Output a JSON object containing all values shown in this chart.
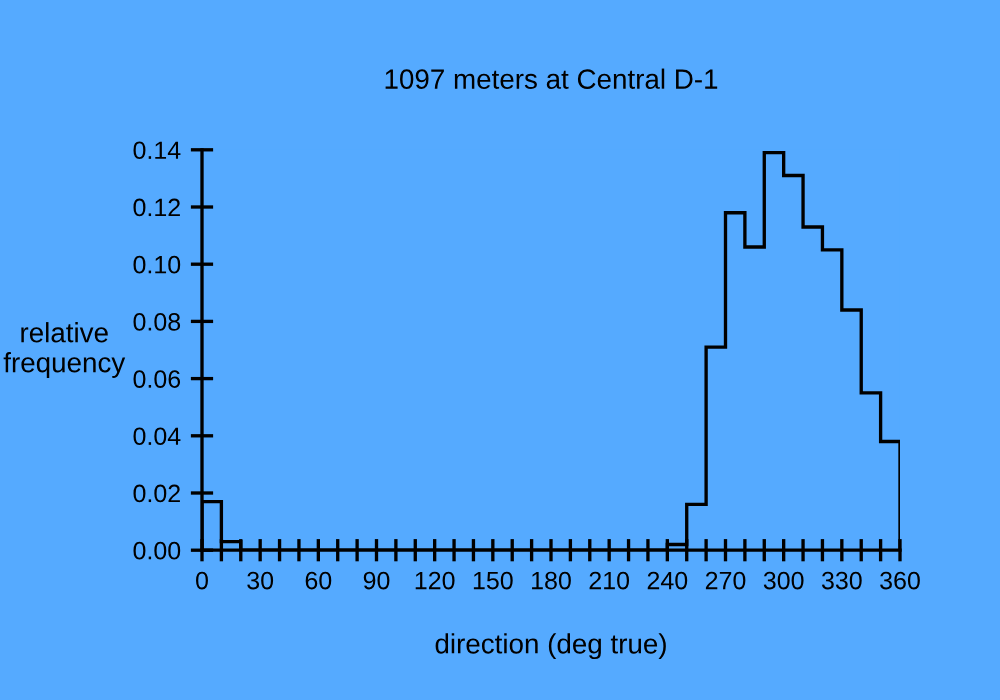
{
  "chart_data": {
    "type": "histogram",
    "title": "1097 meters at Central D-1",
    "xlabel": "direction (deg true)",
    "ylabel": "relative\nfrequency",
    "bins": [
      0,
      10,
      20,
      30,
      40,
      50,
      60,
      70,
      80,
      90,
      100,
      110,
      120,
      130,
      140,
      150,
      160,
      170,
      180,
      190,
      200,
      210,
      220,
      230,
      240,
      250,
      260,
      270,
      280,
      290,
      300,
      310,
      320,
      330,
      340,
      350,
      360
    ],
    "values": [
      0.017,
      0.003,
      0,
      0,
      0,
      0,
      0,
      0,
      0,
      0,
      0,
      0,
      0,
      0,
      0,
      0,
      0,
      0,
      0,
      0,
      0,
      0,
      0,
      0,
      0.002,
      0.016,
      0.071,
      0.118,
      0.106,
      0.139,
      0.131,
      0.113,
      0.105,
      0.084,
      0.055,
      0.038
    ],
    "color": "#000000",
    "xlim": [
      0,
      360
    ],
    "ylim": [
      0,
      0.14
    ],
    "xticks": [
      0,
      {
        "value": 10,
        "label": null
      },
      {
        "value": 20,
        "label": null
      },
      30,
      {
        "value": 40,
        "label": null
      },
      {
        "value": 50,
        "label": null
      },
      60,
      {
        "value": 70,
        "label": null
      },
      {
        "value": 80,
        "label": null
      },
      90,
      {
        "value": 100,
        "label": null
      },
      {
        "value": 110,
        "label": null
      },
      120,
      {
        "value": 130,
        "label": null
      },
      {
        "value": 140,
        "label": null
      },
      150,
      {
        "value": 160,
        "label": null
      },
      {
        "value": 170,
        "label": null
      },
      180,
      {
        "value": 190,
        "label": null
      },
      {
        "value": 200,
        "label": null
      },
      210,
      {
        "value": 220,
        "label": null
      },
      {
        "value": 230,
        "label": null
      },
      240,
      {
        "value": 250,
        "label": null
      },
      {
        "value": 260,
        "label": null
      },
      270,
      {
        "value": 280,
        "label": null
      },
      {
        "value": 290,
        "label": null
      },
      300,
      {
        "value": 310,
        "label": null
      },
      {
        "value": 320,
        "label": null
      },
      330,
      {
        "value": 340,
        "label": null
      },
      {
        "value": 350,
        "label": null
      },
      360
    ],
    "yticks": [
      {
        "value": 0,
        "label": "0.00"
      },
      {
        "value": 0.02,
        "label": "0.02"
      },
      {
        "value": 0.04,
        "label": "0.04"
      },
      {
        "value": 0.06,
        "label": "0.06"
      },
      {
        "value": 0.08,
        "label": "0.08"
      },
      {
        "value": 0.1,
        "label": "0.10"
      },
      {
        "value": 0.12,
        "label": "0.12"
      },
      {
        "value": 0.14,
        "label": "0.14"
      }
    ],
    "grid": false
  }
}
